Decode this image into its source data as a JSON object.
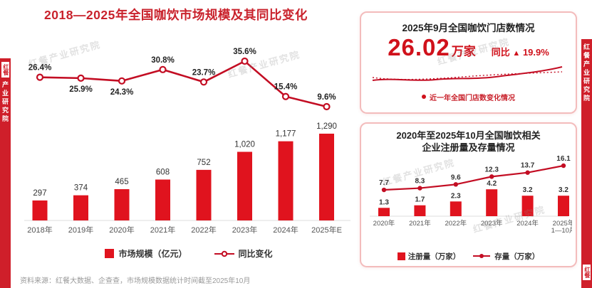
{
  "page": {
    "watermark": "红餐产业研究院",
    "source": "资料来源：红餐大数据、企查查，市场规模数据统计时间截至2025年10月"
  },
  "branding": {
    "logo_text": "红餐",
    "left_banner_text": "产业研究院",
    "right_banner_text": "红餐产业研究院"
  },
  "colors": {
    "brand_red": "#c9222c",
    "bar_red": "#e0131e",
    "line_red": "#c30d23",
    "card_border": "#f3bcbc"
  },
  "chart_data": [
    {
      "type": "bar+line",
      "title": "2018—2025年全国咖饮市场规模及其同比变化",
      "categories": [
        "2018年",
        "2019年",
        "2020年",
        "2021年",
        "2022年",
        "2023年",
        "2024年",
        "2025年E"
      ],
      "series": [
        {
          "name": "市场规模（亿元）",
          "chart": "bar",
          "values": [
            297,
            374,
            465,
            608,
            752,
            1020,
            1177,
            1290
          ],
          "value_labels": [
            "297",
            "374",
            "465",
            "608",
            "752",
            "1,020",
            "1,177",
            "1,290"
          ]
        },
        {
          "name": "同比变化",
          "chart": "line",
          "values": [
            26.4,
            25.9,
            24.3,
            30.8,
            23.7,
            35.6,
            15.4,
            9.6
          ],
          "value_labels": [
            "26.4%",
            "25.9%",
            "24.3%",
            "30.8%",
            "23.7%",
            "35.6%",
            "15.4%",
            "9.6%"
          ]
        }
      ],
      "ylim_bar": [
        0,
        1400
      ],
      "ylim_line": [
        0,
        40
      ],
      "legend_position": "bottom",
      "grid": false
    },
    {
      "type": "line",
      "title": "2025年9月全国咖饮门店数情况",
      "headline_value": "26.02",
      "headline_unit": "万家",
      "yoy_label": "同比",
      "yoy_arrow": "▲",
      "yoy_value": "19.9%",
      "trend": "rising",
      "legend": [
        "近一年全国门店数变化情况"
      ]
    },
    {
      "type": "bar+line",
      "title": "2020年至2025年10月全国咖饮相关企业注册量及存量情况",
      "title_lines": [
        "2020年至2025年10月全国咖饮相关",
        "企业注册量及存量情况"
      ],
      "categories": [
        "2020年",
        "2021年",
        "2022年",
        "2023年",
        "2024年",
        "2025年1—10月"
      ],
      "categories_display": [
        [
          "2020年"
        ],
        [
          "2021年"
        ],
        [
          "2022年"
        ],
        [
          "2023年"
        ],
        [
          "2024年"
        ],
        [
          "2025年",
          "1—10月"
        ]
      ],
      "series": [
        {
          "name": "注册量（万家）",
          "chart": "bar",
          "values": [
            1.3,
            1.7,
            2.3,
            4.2,
            3.2,
            3.2
          ]
        },
        {
          "name": "存量（万家）",
          "chart": "line",
          "values": [
            7.7,
            8.3,
            9.6,
            12.3,
            13.7,
            16.1
          ]
        }
      ],
      "legend_position": "bottom",
      "grid": false
    }
  ]
}
